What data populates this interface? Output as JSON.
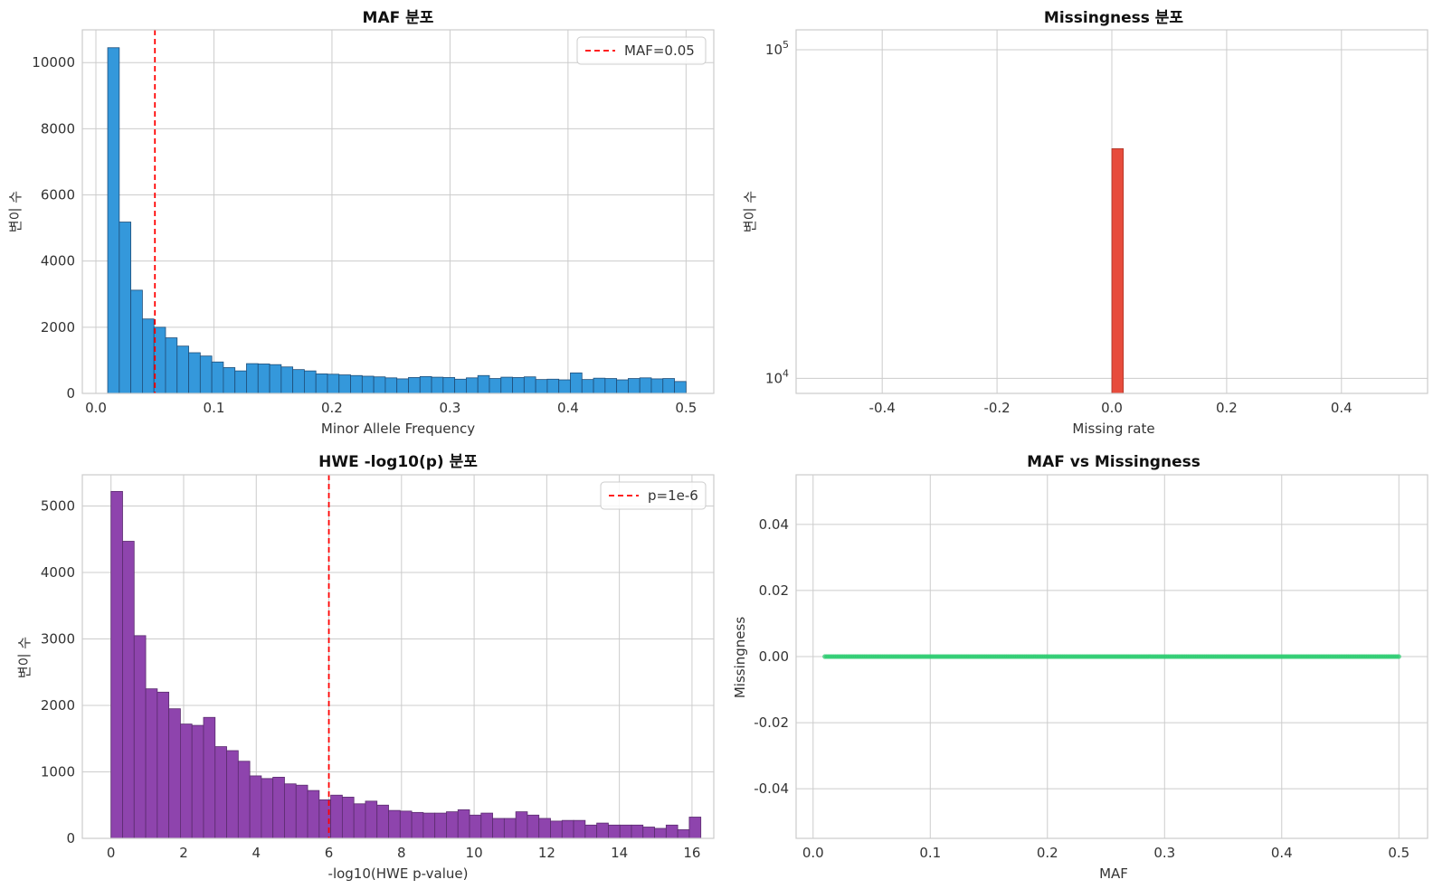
{
  "chart_data": [
    {
      "type": "bar",
      "title": "MAF 분포",
      "xlabel": "Minor Allele Frequency",
      "ylabel": "변이 수",
      "xlim": [
        -0.0115,
        0.5235
      ],
      "ylim": [
        0,
        10990
      ],
      "xticks": [
        0.0,
        0.1,
        0.2,
        0.3,
        0.4,
        0.5
      ],
      "xtick_labels": [
        "0.0",
        "0.1",
        "0.2",
        "0.3",
        "0.4",
        "0.5"
      ],
      "yticks": [
        0,
        2000,
        4000,
        6000,
        8000,
        10000
      ],
      "ytick_labels": [
        "0",
        "2000",
        "4000",
        "6000",
        "8000",
        "10000"
      ],
      "bin_start": 0.01,
      "bin_width": 0.0098,
      "values": [
        10450,
        5180,
        3120,
        2250,
        2000,
        1680,
        1430,
        1230,
        1130,
        950,
        780,
        680,
        900,
        890,
        870,
        800,
        720,
        680,
        590,
        580,
        560,
        540,
        520,
        500,
        470,
        440,
        480,
        510,
        490,
        480,
        430,
        470,
        540,
        450,
        490,
        480,
        500,
        420,
        430,
        410,
        620,
        420,
        460,
        450,
        410,
        450,
        470,
        440,
        450,
        360
      ],
      "color": "#3498db",
      "edge_color": "#1f4e79",
      "vline": {
        "x": 0.05,
        "color": "#ff0000",
        "label": "MAF=0.05"
      },
      "legend": "top-right",
      "grid": true
    },
    {
      "type": "bar",
      "title": "Missingness 분포",
      "xlabel": "Missing rate",
      "ylabel": "변이 수",
      "xlim": [
        -0.55,
        0.55
      ],
      "ylim_log": [
        9000,
        115000
      ],
      "yscale": "log",
      "xticks": [
        -0.4,
        -0.2,
        0.0,
        0.2,
        0.4
      ],
      "xtick_labels": [
        "-0.4",
        "-0.2",
        "0.0",
        "0.2",
        "0.4"
      ],
      "yticks": [
        10000,
        100000
      ],
      "ytick_base": "10",
      "ytick_exponents": [
        "4",
        "5"
      ],
      "bars": [
        {
          "x0": 0.0,
          "x1": 0.02,
          "value": 50000
        }
      ],
      "color": "#e74c3c",
      "edge_color": "#a93226",
      "grid": true
    },
    {
      "type": "bar",
      "title": "HWE -log10(p) 분포",
      "xlabel": "-log10(HWE p-value)",
      "ylabel": "변이 수",
      "xlim": [
        -0.79,
        16.6
      ],
      "ylim": [
        0,
        5470
      ],
      "xticks": [
        0,
        2,
        4,
        6,
        8,
        10,
        12,
        14,
        16
      ],
      "xtick_labels": [
        "0",
        "2",
        "4",
        "6",
        "8",
        "10",
        "12",
        "14",
        "16"
      ],
      "yticks": [
        0,
        1000,
        2000,
        3000,
        4000,
        5000
      ],
      "ytick_labels": [
        "0",
        "1000",
        "2000",
        "3000",
        "4000",
        "5000"
      ],
      "bin_start": 0.0,
      "bin_width": 0.3185,
      "values": [
        5220,
        4470,
        3050,
        2250,
        2200,
        1950,
        1720,
        1700,
        1820,
        1380,
        1320,
        1160,
        940,
        900,
        920,
        820,
        800,
        720,
        580,
        650,
        620,
        520,
        560,
        500,
        420,
        410,
        390,
        380,
        380,
        400,
        430,
        350,
        380,
        300,
        300,
        400,
        350,
        300,
        260,
        270,
        270,
        200,
        230,
        200,
        200,
        200,
        170,
        150,
        200,
        130,
        320
      ],
      "color": "#8e44ad",
      "edge_color": "#5b2c6f",
      "vline": {
        "x": 6,
        "color": "#ff0000",
        "label": "p=1e-6"
      },
      "legend": "top-right",
      "grid": true
    },
    {
      "type": "scatter",
      "title": "MAF vs Missingness",
      "xlabel": "MAF",
      "ylabel": "Missingness",
      "xlim": [
        -0.0145,
        0.5245
      ],
      "ylim": [
        -0.055,
        0.055
      ],
      "xticks": [
        0.0,
        0.1,
        0.2,
        0.3,
        0.4,
        0.5
      ],
      "xtick_labels": [
        "0.0",
        "0.1",
        "0.2",
        "0.3",
        "0.4",
        "0.5"
      ],
      "yticks": [
        -0.04,
        -0.02,
        0.0,
        0.02,
        0.04
      ],
      "ytick_labels": [
        "-0.04",
        "-0.02",
        "0.00",
        "0.02",
        "0.04"
      ],
      "x_range": [
        0.01,
        0.5
      ],
      "y_value": 0.0,
      "color": "#2ecc71",
      "grid": true
    }
  ]
}
